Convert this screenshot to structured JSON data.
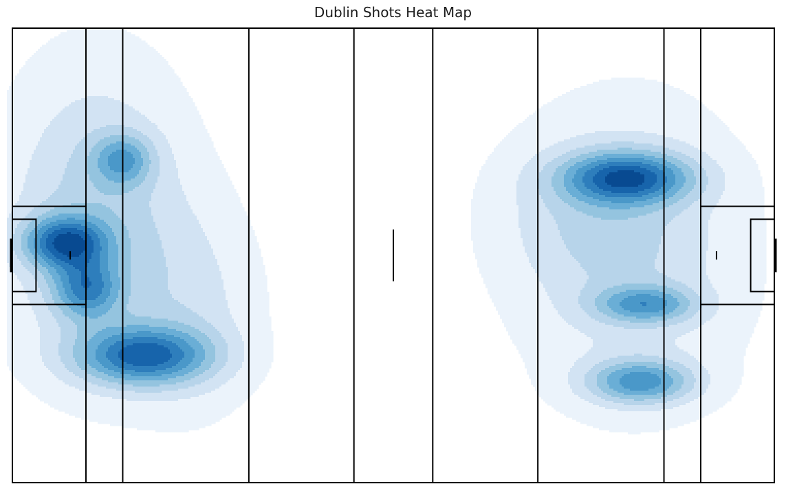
{
  "chart_data": {
    "type": "heatmap",
    "title": "Dublin Shots Heat Map",
    "xlabel": "",
    "ylabel": "",
    "grid": false,
    "legend": "none",
    "colormap": [
      "#ebf3fb",
      "#d2e3f3",
      "#b7d4ea",
      "#94c4df",
      "#6aaed6",
      "#4a98c9",
      "#2e7ebc",
      "#1764ab",
      "#084a91"
    ],
    "pitch": {
      "length": 145,
      "width": 88,
      "line_color": "#000000",
      "field_lines_x": [
        14,
        21,
        45,
        65,
        80,
        100,
        124,
        131
      ],
      "large_box": {
        "depth": 14,
        "width": 19
      },
      "small_box": {
        "depth": 4.5,
        "width": 14
      },
      "goal_width": 6.5,
      "halfway_mark_length": 10,
      "penalty_mark_x": 11
    },
    "density_levels": 9,
    "density_peaks": [
      {
        "x": 25,
        "y": 63.5,
        "spread_x": 9.0,
        "spread_y": 4.0,
        "weight": 1.0
      },
      {
        "x": 10,
        "y": 41.5,
        "spread_x": 5.5,
        "spread_y": 3.5,
        "weight": 0.95
      },
      {
        "x": 14,
        "y": 50.5,
        "spread_x": 4.5,
        "spread_y": 4.0,
        "weight": 0.7
      },
      {
        "x": 21,
        "y": 25.5,
        "spread_x": 4.0,
        "spread_y": 3.5,
        "weight": 0.55
      },
      {
        "x": 16,
        "y": 37,
        "spread_x": 12,
        "spread_y": 20,
        "weight": 0.45
      },
      {
        "x": 35,
        "y": 55,
        "spread_x": 9,
        "spread_y": 14,
        "weight": 0.22
      },
      {
        "x": 117,
        "y": 29,
        "spread_x": 8.5,
        "spread_y": 3.5,
        "weight": 1.0
      },
      {
        "x": 119.5,
        "y": 68.5,
        "spread_x": 7.0,
        "spread_y": 3.0,
        "weight": 0.78
      },
      {
        "x": 120.5,
        "y": 53.5,
        "spread_x": 6.5,
        "spread_y": 2.5,
        "weight": 0.65
      },
      {
        "x": 118,
        "y": 44,
        "spread_x": 15,
        "spread_y": 20,
        "weight": 0.32
      },
      {
        "x": 108,
        "y": 36,
        "spread_x": 12,
        "spread_y": 10,
        "weight": 0.18
      }
    ]
  }
}
